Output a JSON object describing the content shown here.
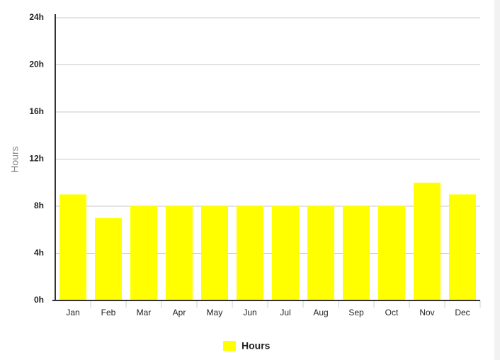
{
  "chart_data": {
    "type": "bar",
    "y_label": "Hours",
    "categories": [
      "Jan",
      "Feb",
      "Mar",
      "Apr",
      "May",
      "Jun",
      "Jul",
      "Aug",
      "Sep",
      "Oct",
      "Nov",
      "Dec"
    ],
    "series": [
      {
        "name": "Hours",
        "color": "#ffff00",
        "values": [
          9,
          7,
          8,
          8,
          8,
          8,
          8,
          8,
          8,
          8,
          10,
          9
        ]
      }
    ],
    "ylim": [
      0,
      24
    ],
    "yticks": [
      {
        "value": 0,
        "label": "0h"
      },
      {
        "value": 4,
        "label": "4h"
      },
      {
        "value": 8,
        "label": "8h"
      },
      {
        "value": 12,
        "label": "12h"
      },
      {
        "value": 16,
        "label": "16h"
      },
      {
        "value": 20,
        "label": "20h"
      },
      {
        "value": 24,
        "label": "24h"
      }
    ],
    "grid": true,
    "legend": "bottom"
  }
}
